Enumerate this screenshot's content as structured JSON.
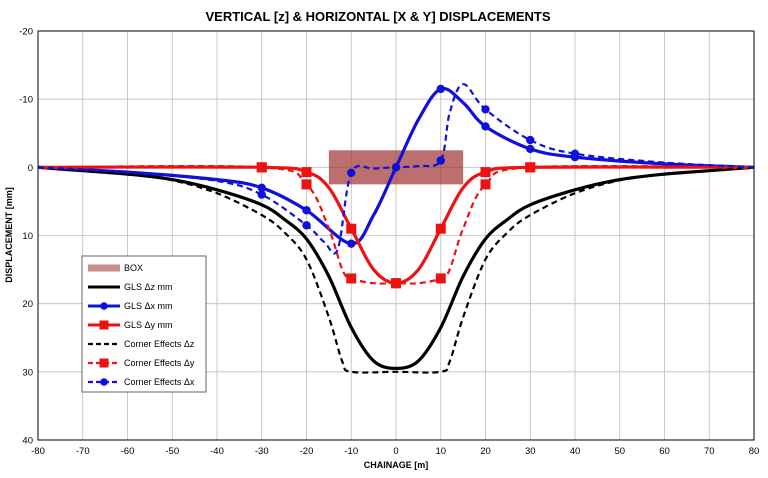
{
  "chart_data": {
    "type": "line",
    "title": "VERTICAL [z] & HORIZONTAL [X & Y] DISPLACEMENTS",
    "xlabel": "CHAINAGE [m]",
    "ylabel": "DISPLACEMENT [mm]",
    "xlim": [
      -80,
      80
    ],
    "ylim": [
      -20,
      40
    ],
    "y_inverted": true,
    "grid": true,
    "x_ticks": [
      -80,
      -70,
      -60,
      -50,
      -40,
      -30,
      -20,
      -10,
      0,
      10,
      20,
      30,
      40,
      50,
      60,
      70,
      80
    ],
    "y_ticks": [
      -20,
      -10,
      0,
      10,
      20,
      30,
      40
    ],
    "legend_position": "lower-left",
    "box": {
      "name": "BOX",
      "x_range": [
        -15,
        15
      ],
      "y_range": [
        -2.5,
        2.5
      ],
      "color": "#a03232"
    },
    "series": [
      {
        "name": "GLS Δz mm",
        "color": "#000000",
        "style": "solid",
        "marker": "none",
        "x": [
          -80,
          -70,
          -60,
          -50,
          -40,
          -30,
          -25,
          -20,
          -15,
          -10,
          -5,
          0,
          5,
          10,
          15,
          20,
          25,
          30,
          40,
          50,
          60,
          70,
          80
        ],
        "y": [
          0,
          0.5,
          1,
          1.8,
          3.3,
          5.5,
          7.6,
          10.5,
          16,
          23.5,
          28.4,
          29.5,
          28.4,
          23.5,
          16,
          10.5,
          7.6,
          5.5,
          3.3,
          1.8,
          1,
          0.5,
          0
        ]
      },
      {
        "name": "GLS Δx mm",
        "color": "#1010dd",
        "style": "solid",
        "marker": "circle",
        "x": [
          -80,
          -60,
          -40,
          -30,
          -20,
          -10,
          -5,
          0,
          5,
          10,
          15,
          20,
          30,
          40,
          60,
          80
        ],
        "y": [
          0,
          0.7,
          1.8,
          3,
          6.3,
          11.2,
          7,
          0,
          -7,
          -11.5,
          -9.5,
          -6,
          -2.7,
          -1.5,
          -0.5,
          0
        ],
        "marker_x": [
          -30,
          -20,
          -10,
          0,
          10,
          20,
          30,
          40
        ],
        "marker_y": [
          3,
          6.3,
          11.2,
          0,
          -11.5,
          -6,
          -2.7,
          -1.5
        ]
      },
      {
        "name": "GLS Δy mm",
        "color": "#ee1111",
        "style": "solid",
        "marker": "square",
        "x": [
          -80,
          -30,
          -20,
          -15,
          -10,
          -5,
          0,
          5,
          10,
          15,
          20,
          30,
          80
        ],
        "y": [
          0,
          0,
          0.7,
          3,
          9,
          15,
          17,
          15,
          9,
          3,
          0.7,
          0,
          0
        ],
        "marker_x": [
          -30,
          -20,
          -10,
          0,
          10,
          20,
          30
        ],
        "marker_y": [
          0,
          0.7,
          9,
          17,
          9,
          0.7,
          0
        ]
      },
      {
        "name": "Corner Effects Δz",
        "color": "#000000",
        "style": "dashed",
        "marker": "none",
        "x": [
          -80,
          -70,
          -60,
          -50,
          -40,
          -30,
          -25,
          -20,
          -15,
          -12,
          -10,
          0,
          10,
          12,
          15,
          20,
          25,
          30,
          40,
          50,
          60,
          70,
          80
        ],
        "y": [
          0,
          0.5,
          1,
          1.9,
          3.8,
          7,
          9.5,
          13.5,
          22,
          28.5,
          30,
          30,
          30,
          28.5,
          22,
          13.5,
          9.5,
          7,
          3.8,
          1.9,
          1,
          0.5,
          0
        ]
      },
      {
        "name": "Corner Effects Δy",
        "color": "#ee1111",
        "style": "dashed",
        "marker": "square",
        "x": [
          -80,
          -30,
          -20,
          -15,
          -12,
          -10,
          -5,
          0,
          5,
          10,
          12,
          15,
          20,
          30,
          80
        ],
        "y": [
          0,
          0,
          2.5,
          9,
          15,
          16.3,
          17,
          17,
          17,
          16.3,
          15,
          9,
          2.5,
          0,
          0
        ],
        "marker_x": [
          -30,
          -20,
          -10,
          0,
          10,
          20,
          30
        ],
        "marker_y": [
          0,
          2.5,
          16.3,
          17,
          16.3,
          2.5,
          0
        ]
      },
      {
        "name": "Corner Effects Δx",
        "color": "#1010dd",
        "style": "dashed",
        "marker": "circle",
        "x": [
          -80,
          -60,
          -40,
          -30,
          -20,
          -16,
          -13,
          -10,
          -5,
          0,
          5,
          10,
          12,
          15,
          20,
          30,
          40,
          60,
          80
        ],
        "y": [
          0,
          0.7,
          2,
          4,
          8.5,
          11,
          12,
          0.8,
          0.2,
          0,
          -0.2,
          -1,
          -8,
          -12.2,
          -8.5,
          -4,
          -2,
          -0.7,
          0
        ],
        "marker_x": [
          -30,
          -20,
          -10,
          0,
          10,
          20,
          30,
          40
        ],
        "marker_y": [
          4,
          8.5,
          0.8,
          0,
          -1,
          -8.5,
          -4,
          -2
        ]
      }
    ]
  }
}
